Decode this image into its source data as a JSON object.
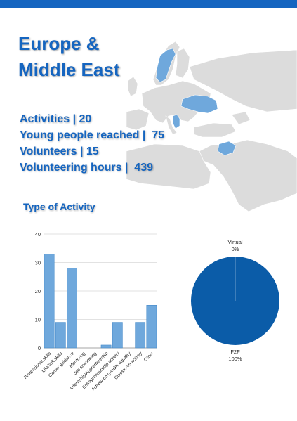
{
  "header": {
    "title_line1": "Europe &",
    "title_line2": "Middle East"
  },
  "stats": [
    {
      "label": "Activities",
      "sep": " | ",
      "value": "20"
    },
    {
      "label": "Young people reached",
      "sep": " |  ",
      "value": "75"
    },
    {
      "label": "Volunteers",
      "sep": " | ",
      "value": "15"
    },
    {
      "label": "Volunteering hours",
      "sep": " |  ",
      "value": "439"
    }
  ],
  "section_title": "Type of Activity",
  "colors": {
    "accent": "#1565c0",
    "bar": "#6fa8dc",
    "bar_stroke": "#3d85c6",
    "pie": "#0b5ca8",
    "map_land": "#dcdcdc",
    "map_highlight": "#6fa8dc"
  },
  "chart_data": [
    {
      "type": "bar",
      "categories": [
        "Professional skills",
        "Life/soft skills",
        "Career guidance",
        "Mentoring",
        "Job shadowing",
        "Internship/Apprenticeship",
        "Entrepreneurship activity",
        "Activity on gender equality",
        "Classroom activity",
        "Other"
      ],
      "values": [
        33,
        9,
        28,
        0,
        0,
        1,
        9,
        0,
        9,
        15
      ],
      "ylim": [
        0,
        40
      ],
      "yticks": [
        0,
        10,
        20,
        30,
        40
      ],
      "grid": true
    },
    {
      "type": "pie",
      "slices": [
        {
          "label": "Virtual",
          "percent_label": "0%",
          "value": 0
        },
        {
          "label": "F2F",
          "percent_label": "100%",
          "value": 100
        }
      ]
    }
  ]
}
